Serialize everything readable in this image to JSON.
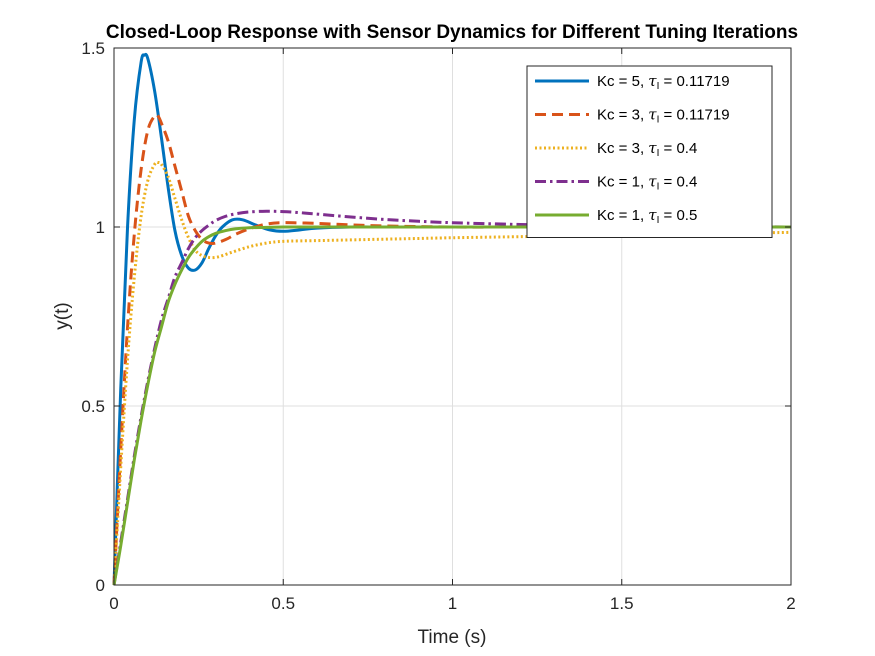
{
  "chart_data": {
    "type": "line",
    "title": "Closed-Loop Response with Sensor Dynamics for Different Tuning Iterations",
    "xlabel": "Time (s)",
    "ylabel": "y(t)",
    "xlim": [
      0,
      2
    ],
    "ylim": [
      0,
      1.5
    ],
    "xticks": [
      0,
      0.5,
      1,
      1.5,
      2
    ],
    "xtick_labels": [
      "0",
      "0.5",
      "1",
      "1.5",
      "2"
    ],
    "yticks": [
      0,
      0.5,
      1,
      1.5
    ],
    "ytick_labels": [
      "0",
      "0.5",
      "1",
      "1.5"
    ],
    "grid": true,
    "legend_position": "top-right",
    "series": [
      {
        "name": "Kc = 5, τI = 0.11719",
        "legend_prefix": "Kc = 5, ",
        "legend_symbol": "τ",
        "legend_sub": "I",
        "legend_suffix": " = 0.11719",
        "color": "#0072BD",
        "style": "solid",
        "x": [
          0,
          0.02,
          0.04,
          0.06,
          0.08,
          0.09,
          0.1,
          0.12,
          0.14,
          0.16,
          0.18,
          0.2,
          0.22,
          0.24,
          0.26,
          0.28,
          0.3,
          0.32,
          0.35,
          0.38,
          0.42,
          0.46,
          0.5,
          0.55,
          0.6,
          0.7,
          0.8,
          1.0,
          1.2,
          1.5,
          2.0
        ],
        "y": [
          0,
          0.55,
          1.0,
          1.3,
          1.46,
          1.48,
          1.47,
          1.38,
          1.25,
          1.11,
          0.99,
          0.92,
          0.885,
          0.88,
          0.9,
          0.94,
          0.975,
          1.0,
          1.02,
          1.02,
          1.005,
          0.992,
          0.988,
          0.992,
          0.997,
          1.0,
          1.0,
          1.0,
          1.0,
          1.0,
          1.0
        ]
      },
      {
        "name": "Kc = 3, τI = 0.11719",
        "legend_prefix": "Kc = 3, ",
        "legend_symbol": "τ",
        "legend_sub": "I",
        "legend_suffix": " = 0.11719",
        "color": "#D95319",
        "style": "dashed",
        "x": [
          0,
          0.02,
          0.04,
          0.06,
          0.08,
          0.1,
          0.12,
          0.13,
          0.14,
          0.16,
          0.18,
          0.2,
          0.22,
          0.24,
          0.26,
          0.28,
          0.3,
          0.33,
          0.36,
          0.4,
          0.45,
          0.5,
          0.6,
          0.7,
          0.8,
          1.0,
          1.2,
          1.5,
          2.0
        ],
        "y": [
          0,
          0.38,
          0.72,
          0.98,
          1.16,
          1.27,
          1.31,
          1.31,
          1.29,
          1.24,
          1.17,
          1.1,
          1.03,
          0.99,
          0.965,
          0.955,
          0.955,
          0.965,
          0.98,
          0.995,
          1.008,
          1.012,
          1.01,
          1.006,
          1.003,
          1.0,
          1.0,
          1.0,
          1.0
        ]
      },
      {
        "name": "Kc = 3, τI = 0.4",
        "legend_prefix": "Kc = 3, ",
        "legend_symbol": "τ",
        "legend_sub": "I",
        "legend_suffix": " = 0.4",
        "color": "#EDB120",
        "style": "dotted",
        "x": [
          0,
          0.02,
          0.04,
          0.06,
          0.08,
          0.1,
          0.12,
          0.13,
          0.14,
          0.16,
          0.18,
          0.2,
          0.22,
          0.24,
          0.26,
          0.28,
          0.3,
          0.32,
          0.35,
          0.4,
          0.45,
          0.5,
          0.6,
          0.7,
          0.8,
          0.9,
          1.0,
          1.2,
          1.4,
          1.6,
          1.8,
          2.0
        ],
        "y": [
          0,
          0.33,
          0.63,
          0.86,
          1.03,
          1.13,
          1.175,
          1.18,
          1.175,
          1.14,
          1.08,
          1.02,
          0.97,
          0.935,
          0.92,
          0.915,
          0.915,
          0.92,
          0.93,
          0.945,
          0.955,
          0.96,
          0.962,
          0.964,
          0.966,
          0.968,
          0.97,
          0.973,
          0.976,
          0.979,
          0.982,
          0.985
        ]
      },
      {
        "name": "Kc = 1, τI = 0.4",
        "legend_prefix": "Kc = 1, ",
        "legend_symbol": "τ",
        "legend_sub": "I",
        "legend_suffix": " = 0.4",
        "color": "#7E2F8E",
        "style": "dashdot",
        "x": [
          0,
          0.02,
          0.04,
          0.06,
          0.08,
          0.1,
          0.12,
          0.14,
          0.16,
          0.18,
          0.2,
          0.22,
          0.24,
          0.26,
          0.28,
          0.3,
          0.33,
          0.36,
          0.4,
          0.45,
          0.5,
          0.55,
          0.6,
          0.7,
          0.8,
          0.9,
          1.0,
          1.2,
          1.4,
          1.6,
          1.8,
          2.0
        ],
        "y": [
          0,
          0.12,
          0.24,
          0.36,
          0.47,
          0.57,
          0.66,
          0.74,
          0.8,
          0.86,
          0.9,
          0.94,
          0.97,
          0.99,
          1.005,
          1.018,
          1.03,
          1.037,
          1.042,
          1.044,
          1.043,
          1.04,
          1.036,
          1.028,
          1.021,
          1.016,
          1.012,
          1.007,
          1.004,
          1.002,
          1.001,
          1.0
        ]
      },
      {
        "name": "Kc = 1, τI = 0.5",
        "legend_prefix": "Kc = 1, ",
        "legend_symbol": "τ",
        "legend_sub": "I",
        "legend_suffix": " = 0.5",
        "color": "#77AC30",
        "style": "solid",
        "x": [
          0,
          0.02,
          0.04,
          0.06,
          0.08,
          0.1,
          0.12,
          0.14,
          0.16,
          0.18,
          0.2,
          0.22,
          0.24,
          0.26,
          0.28,
          0.3,
          0.33,
          0.36,
          0.4,
          0.45,
          0.5,
          0.6,
          0.7,
          0.8,
          1.0,
          1.2,
          1.5,
          2.0
        ],
        "y": [
          0,
          0.11,
          0.23,
          0.35,
          0.46,
          0.56,
          0.65,
          0.72,
          0.79,
          0.84,
          0.88,
          0.915,
          0.94,
          0.96,
          0.973,
          0.982,
          0.99,
          0.995,
          0.998,
          0.999,
          1.0,
          1.0,
          1.0,
          1.0,
          1.0,
          1.0,
          1.0,
          1.0
        ]
      }
    ]
  }
}
